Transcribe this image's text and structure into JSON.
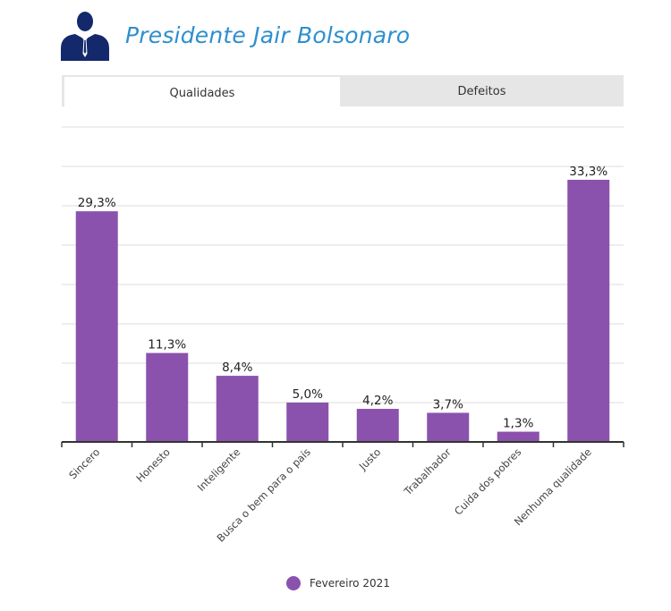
{
  "header": {
    "title": "Presidente Jair Bolsonaro",
    "icon": "person-suit-icon"
  },
  "tabs": [
    {
      "label": "Qualidades",
      "active": true
    },
    {
      "label": "Defeitos",
      "active": false
    }
  ],
  "colors": {
    "bar": "#8b52ad",
    "title": "#2d8fce",
    "grid": "#dddddd",
    "axis": "#333333"
  },
  "chart_data": {
    "type": "bar",
    "categories": [
      "Sincero",
      "Honesto",
      "Inteligente",
      "Busca o bem para o país",
      "Justo",
      "Trabalhador",
      "Cuida dos pobres",
      "Nenhuma qualidade"
    ],
    "series": [
      {
        "name": "Fevereiro 2021",
        "values": [
          29.3,
          11.3,
          8.4,
          5.0,
          4.2,
          3.7,
          1.3,
          33.3
        ]
      }
    ],
    "data_labels": [
      "29,3%",
      "11,3%",
      "8,4%",
      "5,0%",
      "4,2%",
      "3,7%",
      "1,3%",
      "33,3%"
    ],
    "ylim": [
      0,
      40
    ],
    "grid": true,
    "legend_position": "bottom-center"
  }
}
